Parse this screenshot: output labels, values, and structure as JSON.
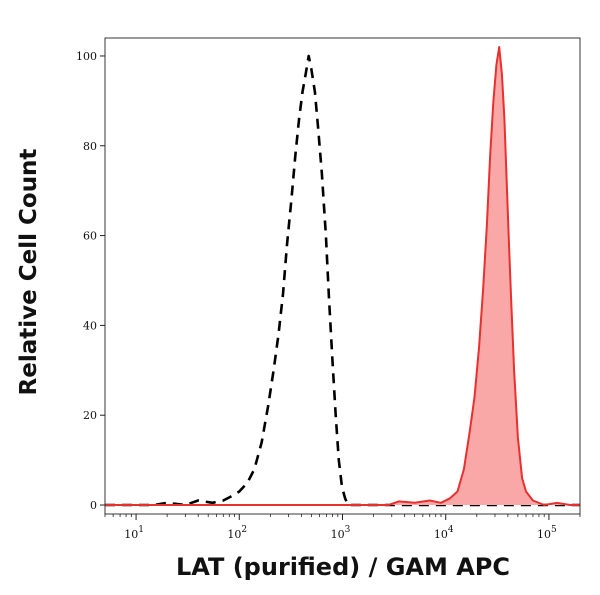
{
  "chart_data": {
    "type": "area",
    "title": "",
    "xlabel": "LAT (purified) / GAM APC",
    "ylabel": "Relative Cell Count",
    "xscale": "log",
    "xlim": [
      5,
      200000
    ],
    "ylim": [
      -2,
      104
    ],
    "grid": false,
    "legend": "none",
    "x_ticks": [
      {
        "value": 10,
        "base": "10",
        "exp": "1"
      },
      {
        "value": 100,
        "base": "10",
        "exp": "2"
      },
      {
        "value": 1000,
        "base": "10",
        "exp": "3"
      },
      {
        "value": 10000,
        "base": "10",
        "exp": "4"
      },
      {
        "value": 100000,
        "base": "10",
        "exp": "5"
      }
    ],
    "y_ticks": [
      {
        "value": 0,
        "label": "0"
      },
      {
        "value": 20,
        "label": "20"
      },
      {
        "value": 40,
        "label": "40"
      },
      {
        "value": 60,
        "label": "60"
      },
      {
        "value": 80,
        "label": "80"
      },
      {
        "value": 100,
        "label": "100"
      }
    ],
    "series": [
      {
        "style": "dashed",
        "color": "#000000",
        "points": [
          [
            5,
            0
          ],
          [
            15,
            0
          ],
          [
            20,
            0.5
          ],
          [
            30,
            0
          ],
          [
            40,
            1
          ],
          [
            55,
            0.5
          ],
          [
            70,
            1
          ],
          [
            85,
            2
          ],
          [
            100,
            3
          ],
          [
            120,
            5
          ],
          [
            140,
            8
          ],
          [
            165,
            14
          ],
          [
            190,
            22
          ],
          [
            215,
            30
          ],
          [
            240,
            38
          ],
          [
            265,
            47
          ],
          [
            290,
            58
          ],
          [
            320,
            68
          ],
          [
            350,
            78
          ],
          [
            380,
            86
          ],
          [
            410,
            92
          ],
          [
            440,
            96
          ],
          [
            470,
            100
          ],
          [
            500,
            97
          ],
          [
            540,
            92
          ],
          [
            580,
            84
          ],
          [
            630,
            74
          ],
          [
            690,
            60
          ],
          [
            740,
            46
          ],
          [
            800,
            32
          ],
          [
            860,
            20
          ],
          [
            920,
            10
          ],
          [
            990,
            4
          ],
          [
            1060,
            1.5
          ],
          [
            1130,
            0
          ],
          [
            3000,
            0
          ],
          [
            200000,
            0
          ]
        ]
      },
      {
        "style": "filled",
        "color": "#e8302e",
        "fill": "#f9a7a7",
        "points": [
          [
            5,
            0
          ],
          [
            2800,
            0
          ],
          [
            3500,
            0.8
          ],
          [
            5000,
            0.5
          ],
          [
            7000,
            1
          ],
          [
            9000,
            0.5
          ],
          [
            11000,
            1.5
          ],
          [
            13000,
            3
          ],
          [
            15000,
            8
          ],
          [
            17000,
            16
          ],
          [
            19000,
            24
          ],
          [
            21000,
            35
          ],
          [
            23000,
            48
          ],
          [
            25000,
            62
          ],
          [
            27000,
            78
          ],
          [
            29000,
            90
          ],
          [
            31000,
            98
          ],
          [
            33000,
            102
          ],
          [
            35000,
            96
          ],
          [
            37000,
            86
          ],
          [
            39000,
            72
          ],
          [
            41000,
            58
          ],
          [
            43000,
            46
          ],
          [
            46000,
            30
          ],
          [
            50000,
            15
          ],
          [
            55000,
            6
          ],
          [
            60000,
            3
          ],
          [
            70000,
            1
          ],
          [
            90000,
            0
          ],
          [
            120000,
            0.5
          ],
          [
            160000,
            0
          ],
          [
            200000,
            0
          ]
        ]
      }
    ]
  }
}
